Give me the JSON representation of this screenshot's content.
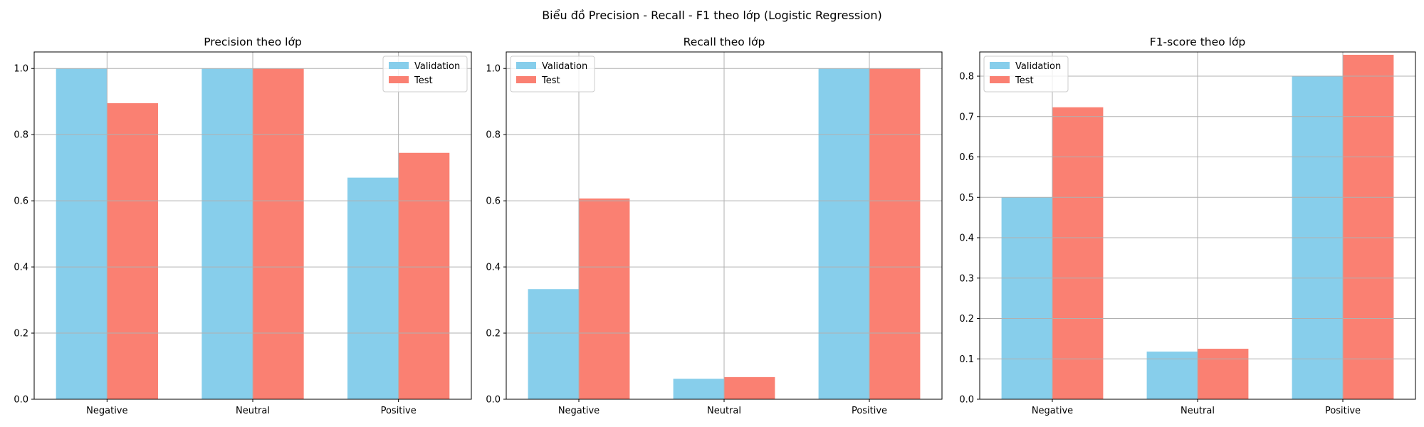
{
  "suptitle": "Biểu đồ Precision - Recall - F1 theo lớp (Logistic Regression)",
  "colors": {
    "validation": "#87CEEB",
    "test": "#FA8072"
  },
  "chart_data": [
    {
      "type": "bar",
      "title": "Precision theo lớp",
      "categories": [
        "Negative",
        "Neutral",
        "Positive"
      ],
      "series": [
        {
          "name": "Validation",
          "values": [
            1.0,
            1.0,
            0.67
          ]
        },
        {
          "name": "Test",
          "values": [
            0.895,
            1.0,
            0.745
          ]
        }
      ],
      "ylim": [
        0,
        1.05
      ],
      "yticks": [
        "0.0",
        "0.2",
        "0.4",
        "0.6",
        "0.8",
        "1.0"
      ],
      "grid": true,
      "legend": "upper-right",
      "xlabel": "",
      "ylabel": ""
    },
    {
      "type": "bar",
      "title": "Recall theo lớp",
      "categories": [
        "Negative",
        "Neutral",
        "Positive"
      ],
      "series": [
        {
          "name": "Validation",
          "values": [
            0.333,
            0.062,
            1.0
          ]
        },
        {
          "name": "Test",
          "values": [
            0.607,
            0.067,
            1.0
          ]
        }
      ],
      "ylim": [
        0,
        1.05
      ],
      "yticks": [
        "0.0",
        "0.2",
        "0.4",
        "0.6",
        "0.8",
        "1.0"
      ],
      "grid": true,
      "legend": "upper-left",
      "xlabel": "",
      "ylabel": ""
    },
    {
      "type": "bar",
      "title": "F1-score theo lớp",
      "categories": [
        "Negative",
        "Neutral",
        "Positive"
      ],
      "series": [
        {
          "name": "Validation",
          "values": [
            0.5,
            0.118,
            0.8
          ]
        },
        {
          "name": "Test",
          "values": [
            0.723,
            0.125,
            0.853
          ]
        }
      ],
      "ylim": [
        0,
        0.86
      ],
      "yticks": [
        "0.0",
        "0.1",
        "0.2",
        "0.3",
        "0.4",
        "0.5",
        "0.6",
        "0.7",
        "0.8"
      ],
      "grid": true,
      "legend": "upper-left",
      "xlabel": "",
      "ylabel": ""
    }
  ]
}
